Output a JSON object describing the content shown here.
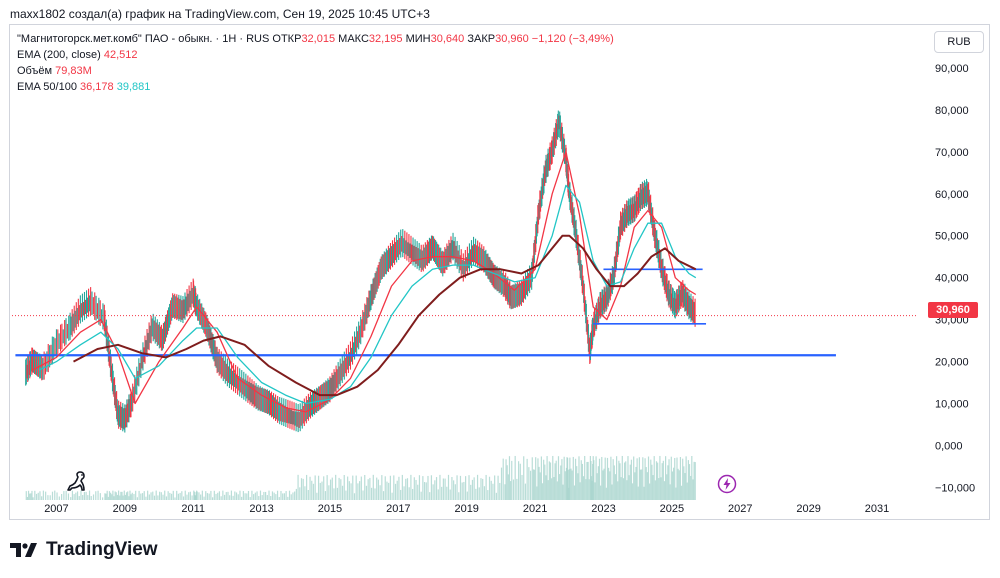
{
  "header": {
    "text": "maxx1802 создал(а) график на TradingView.com, Сен 19, 2025 10:45 UTC+3"
  },
  "legend": {
    "symbol": "\"Магнитогорск.мет.комб\" ПАО - обыкн. · 1Н · RUS",
    "open_label": "ОТКР",
    "open_value": "32,015",
    "high_label": "МАКС",
    "high_value": "32,195",
    "low_label": "МИН",
    "low_value": "30,640",
    "close_label": "ЗАКР",
    "close_value": "30,960",
    "change": "−1,120 (−3,49%)",
    "ema200_label": "EMA (200, close)",
    "ema200_value": "42,512",
    "volume_label": "Объём",
    "volume_value": "79,83M",
    "ema50_100_label": "EMA 50/100",
    "ema50_value": "36,178",
    "ema100_value": "39,881"
  },
  "currency_button": "RUB",
  "price_tag": "30,960",
  "footer": {
    "brand": "TradingView"
  },
  "icons": [
    "tradingview-dino-icon",
    "lightning-icon",
    "tradingview-logo-icon"
  ],
  "colors": {
    "up": "#26a69a",
    "down": "#f23645",
    "ema50": "#f23645",
    "ema100": "#22c6c6",
    "ema200": "#7f1d1d",
    "hline": "#2962ff",
    "volume": "#a8d5cd"
  },
  "chart_data": {
    "type": "line",
    "title": "\"Магнитогорск.мет.комб\" ПАО - обыкн.",
    "x_ticks": [
      "2007",
      "2009",
      "2011",
      "2013",
      "2015",
      "2017",
      "2019",
      "2021",
      "2023",
      "2025",
      "2027",
      "2029",
      "2031"
    ],
    "y_ticks": [
      "90,000",
      "80,000",
      "70,000",
      "60,000",
      "50,000",
      "40,000",
      "30,000",
      "20,000",
      "10,000",
      "0,000",
      "−10,000"
    ],
    "ylim": [
      -13,
      100
    ],
    "xlim": [
      2005.7,
      2032.2
    ],
    "grid": false,
    "series": [
      {
        "name": "price",
        "x": [
          2006.1,
          2006.3,
          2006.6,
          2007.0,
          2007.4,
          2007.7,
          2008.0,
          2008.4,
          2008.6,
          2008.8,
          2009.0,
          2009.2,
          2009.5,
          2009.8,
          2010.1,
          2010.4,
          2010.7,
          2011.0,
          2011.1,
          2011.4,
          2011.7,
          2012.0,
          2012.3,
          2012.6,
          2012.9,
          2013.2,
          2013.5,
          2013.8,
          2014.1,
          2014.4,
          2014.7,
          2015.0,
          2015.3,
          2015.6,
          2015.9,
          2016.2,
          2016.5,
          2016.8,
          2017.1,
          2017.4,
          2017.7,
          2018.0,
          2018.3,
          2018.6,
          2018.9,
          2019.2,
          2019.5,
          2019.8,
          2020.1,
          2020.3,
          2020.6,
          2020.9,
          2021.1,
          2021.3,
          2021.5,
          2021.7,
          2021.9,
          2022.0,
          2022.2,
          2022.4,
          2022.6,
          2022.7,
          2022.9,
          2023.1,
          2023.3,
          2023.5,
          2023.7,
          2023.9,
          2024.1,
          2024.3,
          2024.5,
          2024.7,
          2024.9,
          2025.1,
          2025.3,
          2025.5,
          2025.7
        ],
        "values": [
          17,
          20,
          18,
          24,
          28,
          32,
          34,
          30,
          18,
          7,
          6,
          10,
          20,
          28,
          25,
          33,
          32,
          36,
          33,
          28,
          20,
          17,
          15,
          13,
          11,
          10,
          8,
          7,
          6,
          9,
          11,
          13,
          17,
          21,
          27,
          35,
          42,
          45,
          48,
          46,
          44,
          47,
          43,
          47,
          42,
          46,
          44,
          40,
          38,
          35,
          36,
          40,
          55,
          65,
          70,
          77,
          68,
          60,
          50,
          38,
          22,
          28,
          33,
          35,
          40,
          52,
          55,
          56,
          59,
          60,
          50,
          42,
          36,
          33,
          36,
          33,
          31
        ]
      },
      {
        "name": "EMA 50",
        "x": [
          2006.3,
          2007.0,
          2007.7,
          2008.3,
          2008.8,
          2009.3,
          2010.0,
          2010.7,
          2011.1,
          2011.7,
          2012.3,
          2013.0,
          2013.7,
          2014.3,
          2015.0,
          2015.6,
          2016.2,
          2016.8,
          2017.4,
          2018.0,
          2018.6,
          2019.2,
          2019.8,
          2020.4,
          2021.0,
          2021.5,
          2021.9,
          2022.3,
          2022.7,
          2023.1,
          2023.5,
          2023.9,
          2024.3,
          2024.7,
          2025.1,
          2025.5,
          2025.7
        ],
        "values": [
          18,
          21,
          27,
          30,
          22,
          10,
          20,
          28,
          33,
          27,
          16,
          12,
          9,
          8,
          11,
          16,
          26,
          38,
          44,
          45,
          45,
          44,
          41,
          37,
          42,
          60,
          70,
          55,
          33,
          30,
          38,
          52,
          56,
          52,
          40,
          37,
          36
        ]
      },
      {
        "name": "EMA 100",
        "x": [
          2006.5,
          2007.0,
          2007.7,
          2008.3,
          2008.8,
          2009.3,
          2010.0,
          2010.7,
          2011.1,
          2011.7,
          2012.3,
          2013.0,
          2013.7,
          2014.3,
          2015.0,
          2015.6,
          2016.2,
          2016.8,
          2017.4,
          2018.0,
          2018.6,
          2019.2,
          2019.8,
          2020.4,
          2021.0,
          2021.5,
          2021.9,
          2022.3,
          2022.7,
          2023.1,
          2023.5,
          2023.9,
          2024.3,
          2024.7,
          2025.1,
          2025.5,
          2025.7
        ],
        "values": [
          18,
          20,
          24,
          27,
          23,
          16,
          19,
          25,
          28,
          28,
          21,
          15,
          12,
          10,
          11,
          14,
          21,
          31,
          38,
          42,
          43,
          43,
          41,
          39,
          40,
          50,
          62,
          58,
          44,
          38,
          39,
          47,
          53,
          53,
          45,
          41,
          40
        ]
      },
      {
        "name": "EMA 200",
        "x": [
          2007.5,
          2008.2,
          2008.8,
          2009.5,
          2010.2,
          2010.8,
          2011.3,
          2011.8,
          2012.5,
          2013.2,
          2014.0,
          2014.7,
          2015.2,
          2015.8,
          2016.4,
          2017.0,
          2017.6,
          2018.2,
          2018.8,
          2019.4,
          2020.0,
          2020.6,
          2021.1,
          2021.5,
          2021.8,
          2022.0,
          2022.4,
          2022.8,
          2023.2,
          2023.6,
          2024.0,
          2024.4,
          2024.8,
          2025.2,
          2025.7
        ],
        "values": [
          20,
          23,
          24,
          22,
          21,
          23,
          25,
          26,
          24,
          19,
          15,
          12,
          12,
          14,
          18,
          24,
          31,
          36,
          40,
          42,
          42,
          41,
          43,
          47,
          50,
          50,
          47,
          42,
          38,
          38,
          41,
          45,
          47,
          44,
          42
        ]
      }
    ],
    "horizontal_lines": [
      {
        "y": 21.5,
        "x_start": 2005.8,
        "x_end": 2029.8
      },
      {
        "y": 42,
        "x_start": 2023.0,
        "x_end": 2025.9
      },
      {
        "y": 29,
        "x_start": 2022.7,
        "x_end": 2026.0
      }
    ],
    "current_price": 30.96
  }
}
